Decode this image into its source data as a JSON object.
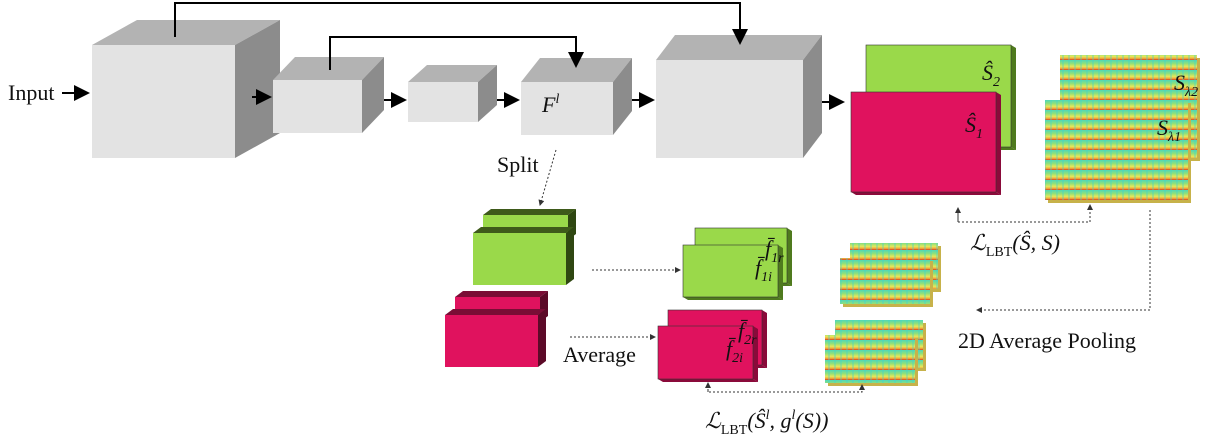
{
  "input_label": "Input",
  "feature_label": {
    "base": "F",
    "sup": "l"
  },
  "split_label": "Split",
  "average_label": "Average",
  "pooling_label": "2D Average Pooling",
  "outputs": [
    {
      "base": "Ŝ",
      "sub": "2"
    },
    {
      "base": "Ŝ",
      "sub": "1"
    }
  ],
  "spectrograms": [
    {
      "base": "S",
      "sub": "λ2"
    },
    {
      "base": "S",
      "sub": "λ1"
    }
  ],
  "split_features": [
    {
      "base": "f̄",
      "sub": "1r"
    },
    {
      "base": "f̄",
      "sub": "1i"
    },
    {
      "base": "f̄",
      "sub": "2r"
    },
    {
      "base": "f̄",
      "sub": "2i"
    }
  ],
  "losses": [
    {
      "symbol": "ℒ",
      "sub": "LBT",
      "args": [
        {
          "text": "(Ŝ, S)"
        }
      ]
    },
    {
      "symbol": "ℒ",
      "sub": "LBT",
      "args": [
        {
          "text": "(Ŝ"
        },
        {
          "sup": "l"
        },
        {
          "text": ", g"
        },
        {
          "sup": "l"
        },
        {
          "text": "(S))"
        }
      ]
    }
  ]
}
